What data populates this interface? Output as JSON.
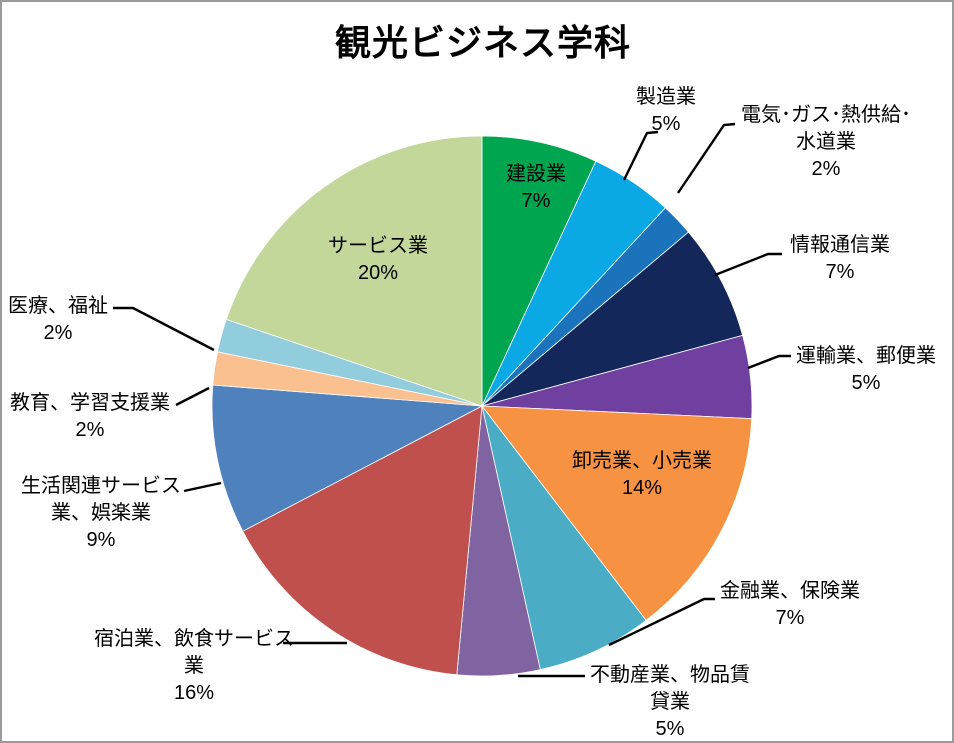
{
  "title": "観光ビジネス学科",
  "colors": {
    "background": "#ffffff",
    "frame_border": "#9b9b9b",
    "leader_line": "#000000",
    "label_text": "#000000"
  },
  "chart_data": {
    "type": "pie",
    "title": "観光ビジネス学科",
    "unit": "%",
    "legend_position": "none",
    "label_style": "category name + percentage, outside with leader lines (inside for large slices)",
    "start_angle_deg": 0,
    "direction": "clockwise",
    "categories": [
      "建設業",
      "製造業",
      "電気･ガス･熱供給･水道業",
      "情報通信業",
      "運輸業、郵便業",
      "卸売業、小売業",
      "金融業、保険業",
      "不動産業、物品賃貸業",
      "宿泊業、飲食サービス業",
      "生活関連サービス業、娯楽業",
      "教育、学習支援業",
      "医療、福祉",
      "サービス業"
    ],
    "values": [
      7,
      5,
      2,
      7,
      5,
      14,
      7,
      5,
      16,
      9,
      2,
      2,
      20
    ],
    "slices": [
      {
        "label": "建設業",
        "display_lines": [
          "建設業"
        ],
        "value": 7,
        "pct_label": "7%",
        "color": "#00a54f",
        "label_placement": "inside"
      },
      {
        "label": "製造業",
        "display_lines": [
          "製造業"
        ],
        "value": 5,
        "pct_label": "5%",
        "color": "#0aa8e4",
        "label_placement": "outside"
      },
      {
        "label": "電気･ガス･熱供給･水道業",
        "display_lines": [
          "電気･ガス･熱供給･",
          "水道業"
        ],
        "value": 2,
        "pct_label": "2%",
        "color": "#1b73bc",
        "label_placement": "outside"
      },
      {
        "label": "情報通信業",
        "display_lines": [
          "情報通信業"
        ],
        "value": 7,
        "pct_label": "7%",
        "color": "#14275b",
        "label_placement": "outside"
      },
      {
        "label": "運輸業、郵便業",
        "display_lines": [
          "運輸業、郵便業"
        ],
        "value": 5,
        "pct_label": "5%",
        "color": "#7040a0",
        "label_placement": "outside"
      },
      {
        "label": "卸売業、小売業",
        "display_lines": [
          "卸売業、小売業"
        ],
        "value": 14,
        "pct_label": "14%",
        "color": "#f79243",
        "label_placement": "inside"
      },
      {
        "label": "金融業、保険業",
        "display_lines": [
          "金融業、保険業"
        ],
        "value": 7,
        "pct_label": "7%",
        "color": "#4bacc6",
        "label_placement": "outside"
      },
      {
        "label": "不動産業、物品賃貸業",
        "display_lines": [
          "不動産業、物品賃",
          "貸業"
        ],
        "value": 5,
        "pct_label": "5%",
        "color": "#8064a2",
        "label_placement": "outside"
      },
      {
        "label": "宿泊業、飲食サービス業",
        "display_lines": [
          "宿泊業、飲食サービス",
          "業"
        ],
        "value": 16,
        "pct_label": "16%",
        "color": "#c0504d",
        "label_placement": "outside"
      },
      {
        "label": "生活関連サービス業、娯楽業",
        "display_lines": [
          "生活関連サービス",
          "業、娯楽業"
        ],
        "value": 9,
        "pct_label": "9%",
        "color": "#4f81bd",
        "label_placement": "outside"
      },
      {
        "label": "教育、学習支援業",
        "display_lines": [
          "教育、学習支援業"
        ],
        "value": 2,
        "pct_label": "2%",
        "color": "#fac08f",
        "label_placement": "outside"
      },
      {
        "label": "医療、福祉",
        "display_lines": [
          "医療、福祉"
        ],
        "value": 2,
        "pct_label": "2%",
        "color": "#92cdde",
        "label_placement": "outside"
      },
      {
        "label": "サービス業",
        "display_lines": [
          "サービス業"
        ],
        "value": 20,
        "pct_label": "20%",
        "color": "#c4d79b",
        "label_placement": "inside"
      }
    ]
  }
}
